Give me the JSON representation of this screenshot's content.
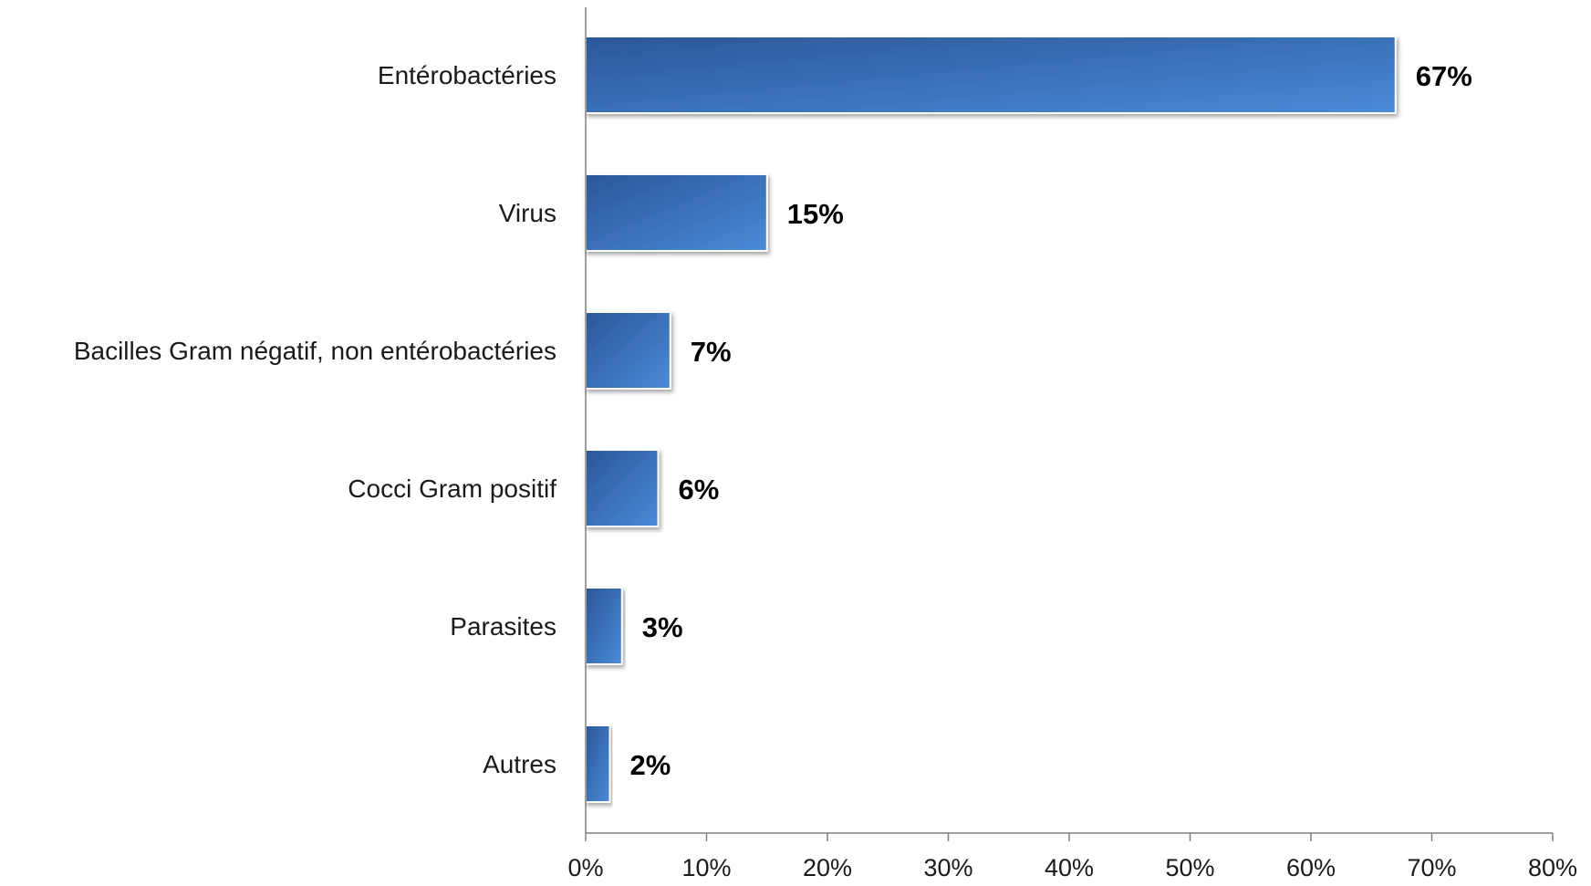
{
  "chart_data": {
    "type": "bar",
    "orientation": "horizontal",
    "categories": [
      "Entérobactéries",
      "Virus",
      "Bacilles Gram négatif, non entérobactéries",
      "Cocci Gram positif",
      "Parasites",
      "Autres"
    ],
    "values": [
      67,
      15,
      7,
      6,
      3,
      2
    ],
    "value_labels": [
      "67%",
      "15%",
      "7%",
      "6%",
      "3%",
      "2%"
    ],
    "title": "",
    "xlabel": "",
    "ylabel": "",
    "xlim": [
      0,
      80
    ],
    "x_ticks": [
      0,
      10,
      20,
      30,
      40,
      50,
      60,
      70,
      80
    ],
    "x_tick_labels": [
      "0%",
      "10%",
      "20%",
      "30%",
      "40%",
      "50%",
      "60%",
      "70%",
      "80%"
    ],
    "grid": false,
    "legend": "none",
    "colors": {
      "bar_dark": "#2b5797",
      "bar_light": "#4a8ad8",
      "axis": "#7f7f7f"
    }
  }
}
